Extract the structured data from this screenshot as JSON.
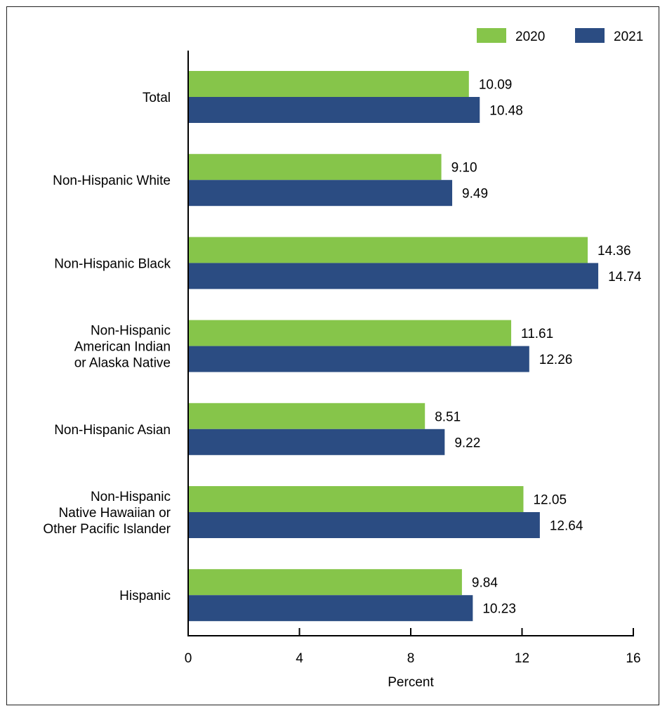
{
  "chart_data": {
    "type": "bar",
    "orientation": "horizontal",
    "categories": [
      [
        "Total"
      ],
      [
        "Non-Hispanic White"
      ],
      [
        "Non-Hispanic Black"
      ],
      [
        "Non-Hispanic",
        "American Indian",
        "or Alaska Native"
      ],
      [
        "Non-Hispanic Asian"
      ],
      [
        "Non-Hispanic",
        "Native Hawaiian or",
        "Other Pacific Islander"
      ],
      [
        "Hispanic"
      ]
    ],
    "series": [
      {
        "name": "2020",
        "color": "#86c54a",
        "values": [
          10.09,
          9.1,
          14.36,
          11.61,
          8.51,
          12.05,
          9.84
        ],
        "labels": [
          "10.09",
          "9.10",
          "14.36",
          "11.61",
          "8.51",
          "12.05",
          "9.84"
        ]
      },
      {
        "name": "2021",
        "color": "#2b4c82",
        "values": [
          10.48,
          9.49,
          14.74,
          12.26,
          9.22,
          12.64,
          10.23
        ],
        "labels": [
          "10.48",
          "9.49",
          "14.74",
          "12.26",
          "9.22",
          "12.64",
          "10.23"
        ]
      }
    ],
    "xlabel": "Percent",
    "ylabel": "",
    "title": "",
    "xlim": [
      0,
      16
    ],
    "xticks": [
      "0",
      "4",
      "8",
      "12",
      "16"
    ],
    "grid": false,
    "legend_position": "top-right"
  }
}
